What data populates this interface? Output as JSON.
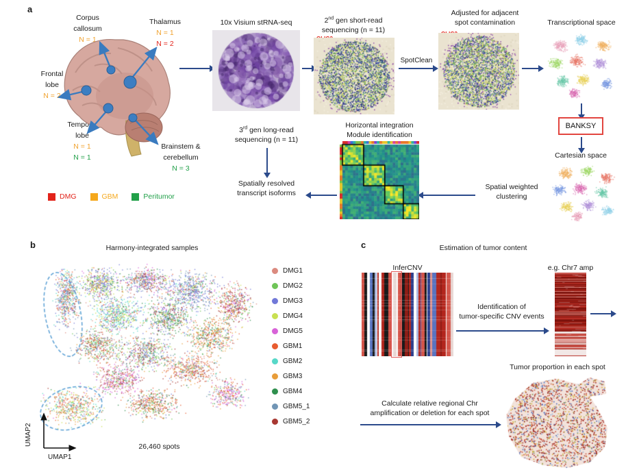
{
  "colors": {
    "arrow": "#2b4a8b",
    "olig2": "#e2231a",
    "banksy_border": "#e2453f",
    "dashed_ellipse": "#5a9fd4",
    "n_orange": "#f0a22e",
    "n_red": "#e2231a",
    "n_green": "#21a049"
  },
  "panel_a": {
    "label": "a",
    "regions": {
      "corpus": {
        "line1": "Corpus",
        "line2": "callosum",
        "n1": "N = 1"
      },
      "thalamus": {
        "line1": "Thalamus",
        "n1": "N = 1",
        "n2": "N = 2"
      },
      "frontal": {
        "line1": "Frontal",
        "line2": "lobe",
        "n1": "N = 2"
      },
      "temporal": {
        "line1": "Temporal",
        "line2": "lobe",
        "n1": "N = 1",
        "n2": "N = 1"
      },
      "brainstem": {
        "line1": "Brainstem &",
        "line2": "cerebellum",
        "n1": "N = 3"
      }
    },
    "legend": [
      {
        "label": "DMG",
        "color": "#e2231a"
      },
      {
        "label": "GBM",
        "color": "#f5a81c"
      },
      {
        "label": "Peritumor",
        "color": "#21a049"
      }
    ],
    "visium_title": "10x Visium stRNA-seq",
    "shortread": {
      "num": "2",
      "sup": "nd",
      "rest": " gen short-read",
      "line2": "sequencing (n = 11)",
      "marker": "OLIG2"
    },
    "spotclean": "SpotClean",
    "adjusted": {
      "line1": "Adjusted for adjacent",
      "line2": "spot contamination",
      "marker": "OLIG2"
    },
    "transcriptional_title": "Transcriptional space",
    "banksy": "BANKSY",
    "cartesian_title": "Cartesian space",
    "clustering": {
      "line1": "Spatial weighted",
      "line2": "clustering"
    },
    "module": {
      "line1": "Horizontal integration",
      "line2": "Module identification"
    },
    "isoforms": {
      "line1": "Spatially resolved",
      "line2": "transcript isoforms"
    },
    "longread": {
      "num": "3",
      "sup": "rd",
      "rest": " gen long-read",
      "line2": "sequencing (n = 11)"
    }
  },
  "panel_b": {
    "label": "b",
    "title": "Harmony-integrated samples",
    "legend": [
      {
        "label": "DMG1",
        "color": "#db8a7f"
      },
      {
        "label": "DMG2",
        "color": "#6fc558"
      },
      {
        "label": "DMG3",
        "color": "#7178d8"
      },
      {
        "label": "DMG4",
        "color": "#c9e052"
      },
      {
        "label": "DMG5",
        "color": "#d863d8"
      },
      {
        "label": "GBM1",
        "color": "#e85c30"
      },
      {
        "label": "GBM2",
        "color": "#57d8c8"
      },
      {
        "label": "GBM3",
        "color": "#e89d3a"
      },
      {
        "label": "GBM4",
        "color": "#2f8f4e"
      },
      {
        "label": "GBM5_1",
        "color": "#7195b5"
      },
      {
        "label": "GBM5_2",
        "color": "#a83832"
      }
    ],
    "spots_count": "26,460 spots",
    "x_axis": "UMAP1",
    "y_axis": "UMAP2"
  },
  "panel_c": {
    "label": "c",
    "title": "Estimation of tumor content",
    "infercnv_title": "InferCNV",
    "identification": {
      "line1": "Identification of",
      "line2": "tumor-specific CNV events"
    },
    "chr7_title": "e.g. Chr7 amp",
    "tumor_proportion_title": "Tumor proportion in each spot",
    "calculate": {
      "line1": "Calculate relative regional Chr",
      "line2": "amplification or deletion for each spot"
    }
  }
}
